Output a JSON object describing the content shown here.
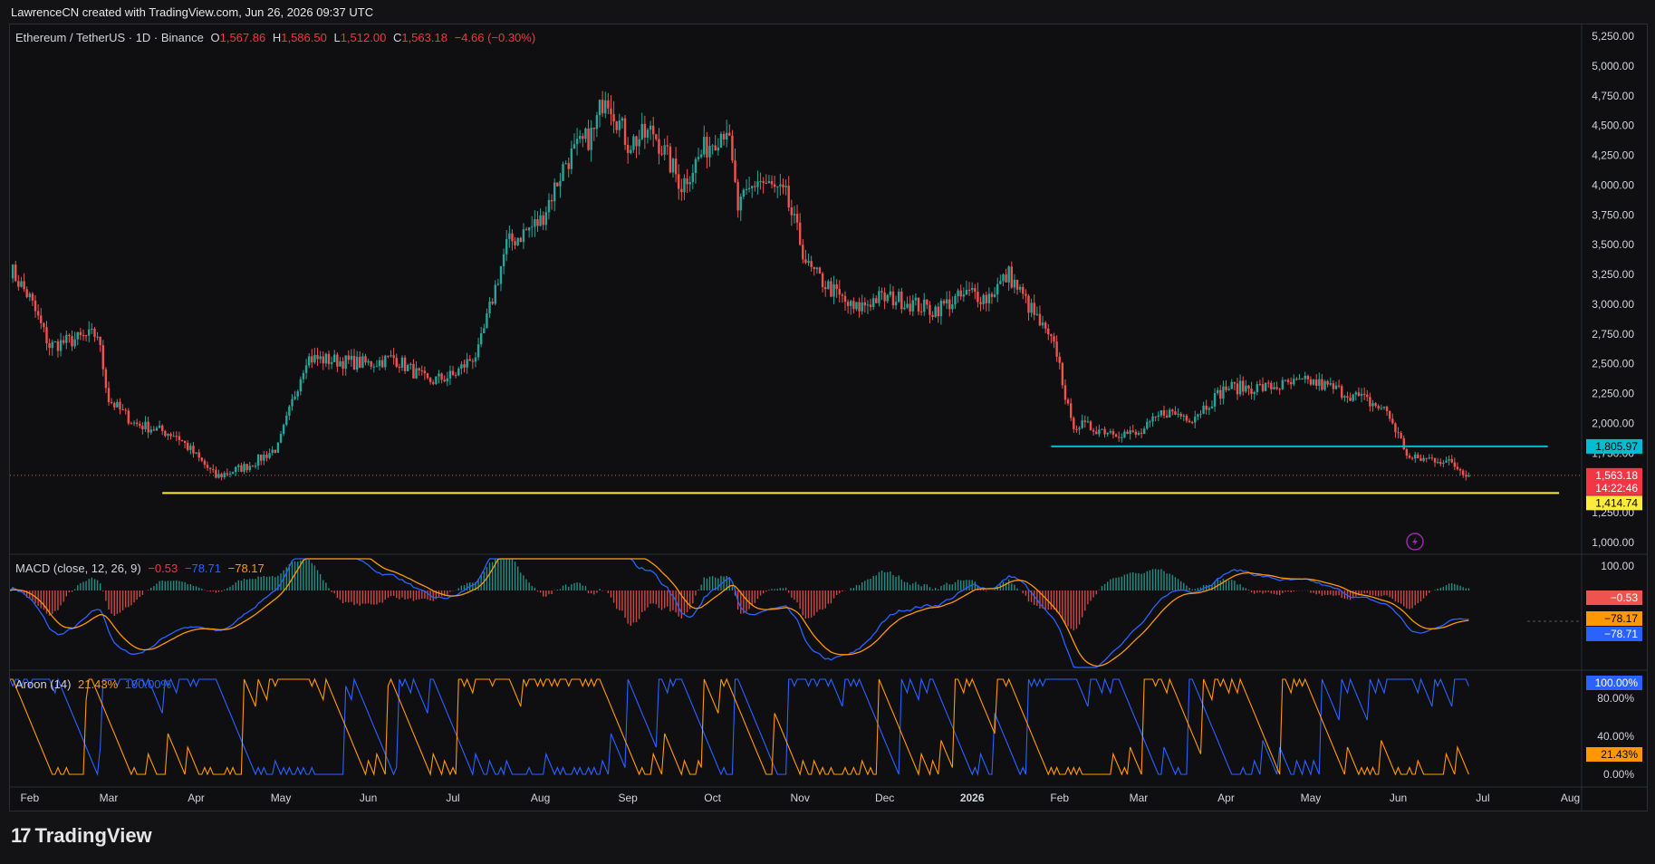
{
  "attribution": "LawrenceCN created with TradingView.com, Jun 26, 2026 09:37 UTC",
  "brand": "TradingView",
  "chart_header": {
    "symbol": "Ethereum / TetherUS · 1D · Binance",
    "open_label": "O",
    "open": "1,567.86",
    "high_label": "H",
    "high": "1,586.50",
    "low_label": "L",
    "low": "1,512.00",
    "close_label": "C",
    "close": "1,563.18",
    "change": "−4.66 (−0.30%)"
  },
  "macd_header": {
    "label": "MACD (close, 12, 26, 9)",
    "hist": "−0.53",
    "macd": "−78.71",
    "signal": "−78.17"
  },
  "aroon_header": {
    "label": "Aroon (14)",
    "up": "21.43%",
    "down": "100.00%"
  },
  "colors": {
    "up": "#26a69a",
    "down": "#ef5350",
    "support": "#ffeb3b",
    "resistance": "#00bcd4",
    "macd_line": "#2962ff",
    "signal_line": "#ff9800",
    "aroon_up": "#ff9800",
    "aroon_down": "#2962ff",
    "price_badge": "#f23645"
  },
  "price_axis_ticks": [
    "5,250.00",
    "5,000.00",
    "4,750.00",
    "4,500.00",
    "4,250.00",
    "4,000.00",
    "3,750.00",
    "3,500.00",
    "3,250.00",
    "3,000.00",
    "2,750.00",
    "2,500.00",
    "2,250.00",
    "2,000.00",
    "1,750.00",
    "1,500.00",
    "1,250.00",
    "1,000.00"
  ],
  "price_badges": {
    "resistance": "1,805.97",
    "current": "1,563.18",
    "countdown": "14:22:46",
    "support": "1,414.74"
  },
  "macd_axis": {
    "top": "100.00",
    "hist_badge": "−0.53",
    "signal_badge": "−78.17",
    "macd_badge": "−78.71"
  },
  "aroon_axis": {
    "ticks": [
      "80.00%",
      "40.00%",
      "0.00%"
    ],
    "down_badge": "100.00%",
    "up_badge": "21.43%"
  },
  "time_axis": [
    "Feb",
    "Mar",
    "Apr",
    "May",
    "Jun",
    "Jul",
    "Aug",
    "Sep",
    "Oct",
    "Nov",
    "Dec",
    "2026",
    "Feb",
    "Mar",
    "Apr",
    "May",
    "Jun",
    "Jul",
    "Aug"
  ],
  "chart_data": {
    "type": "line",
    "title": "Ethereum / TetherUS · 1D · Binance",
    "timeframe": "1D",
    "ylim": [
      900,
      5350
    ],
    "y_scale": "linear",
    "grid": false,
    "x_range": [
      "2025-01-25",
      "2026-08-05"
    ],
    "series": [
      {
        "name": "Ethereum / TetherUS",
        "x": [
          "2025-01-25",
          "2025-02-01",
          "2025-02-08",
          "2025-02-25",
          "2025-03-01",
          "2025-03-10",
          "2025-03-25",
          "2025-04-08",
          "2025-04-20",
          "2025-04-30",
          "2025-05-10",
          "2025-06-01",
          "2025-06-10",
          "2025-06-22",
          "2025-07-01",
          "2025-07-10",
          "2025-07-20",
          "2025-08-01",
          "2025-08-10",
          "2025-08-20",
          "2025-08-24",
          "2025-09-01",
          "2025-09-10",
          "2025-09-20",
          "2025-09-28",
          "2025-10-06",
          "2025-10-10",
          "2025-10-17",
          "2025-10-27",
          "2025-11-04",
          "2025-11-20",
          "2025-11-28",
          "2025-12-05",
          "2025-12-18",
          "2026-01-01",
          "2026-01-06",
          "2026-01-14",
          "2026-01-22",
          "2026-01-31",
          "2026-02-05",
          "2026-02-15",
          "2026-03-01",
          "2026-03-10",
          "2026-03-20",
          "2026-04-01",
          "2026-04-15",
          "2026-05-01",
          "2026-05-08",
          "2026-05-20",
          "2026-05-28",
          "2026-06-05",
          "2026-06-15",
          "2026-06-20",
          "2026-06-26"
        ],
        "values": [
          3300,
          3050,
          2650,
          2750,
          2200,
          2000,
          1900,
          1550,
          1650,
          1800,
          2550,
          2500,
          2550,
          2350,
          2400,
          2600,
          3500,
          3700,
          4200,
          4450,
          4800,
          4350,
          4450,
          4000,
          4300,
          4500,
          3800,
          4050,
          3900,
          3300,
          2950,
          3050,
          3050,
          2950,
          3100,
          3050,
          3250,
          2950,
          2600,
          2000,
          1950,
          1900,
          2100,
          2050,
          2300,
          2300,
          2350,
          2300,
          2200,
          2100,
          1700,
          1700,
          1660,
          1563
        ]
      }
    ],
    "support_level": 1414.74,
    "resistance_level": 1805.97,
    "macd": {
      "params": "close, 12, 26, 9",
      "hist": -0.53,
      "macd": -78.71,
      "signal": -78.17
    },
    "aroon": {
      "length": 14,
      "up": 21.43,
      "down": 100.0
    }
  }
}
